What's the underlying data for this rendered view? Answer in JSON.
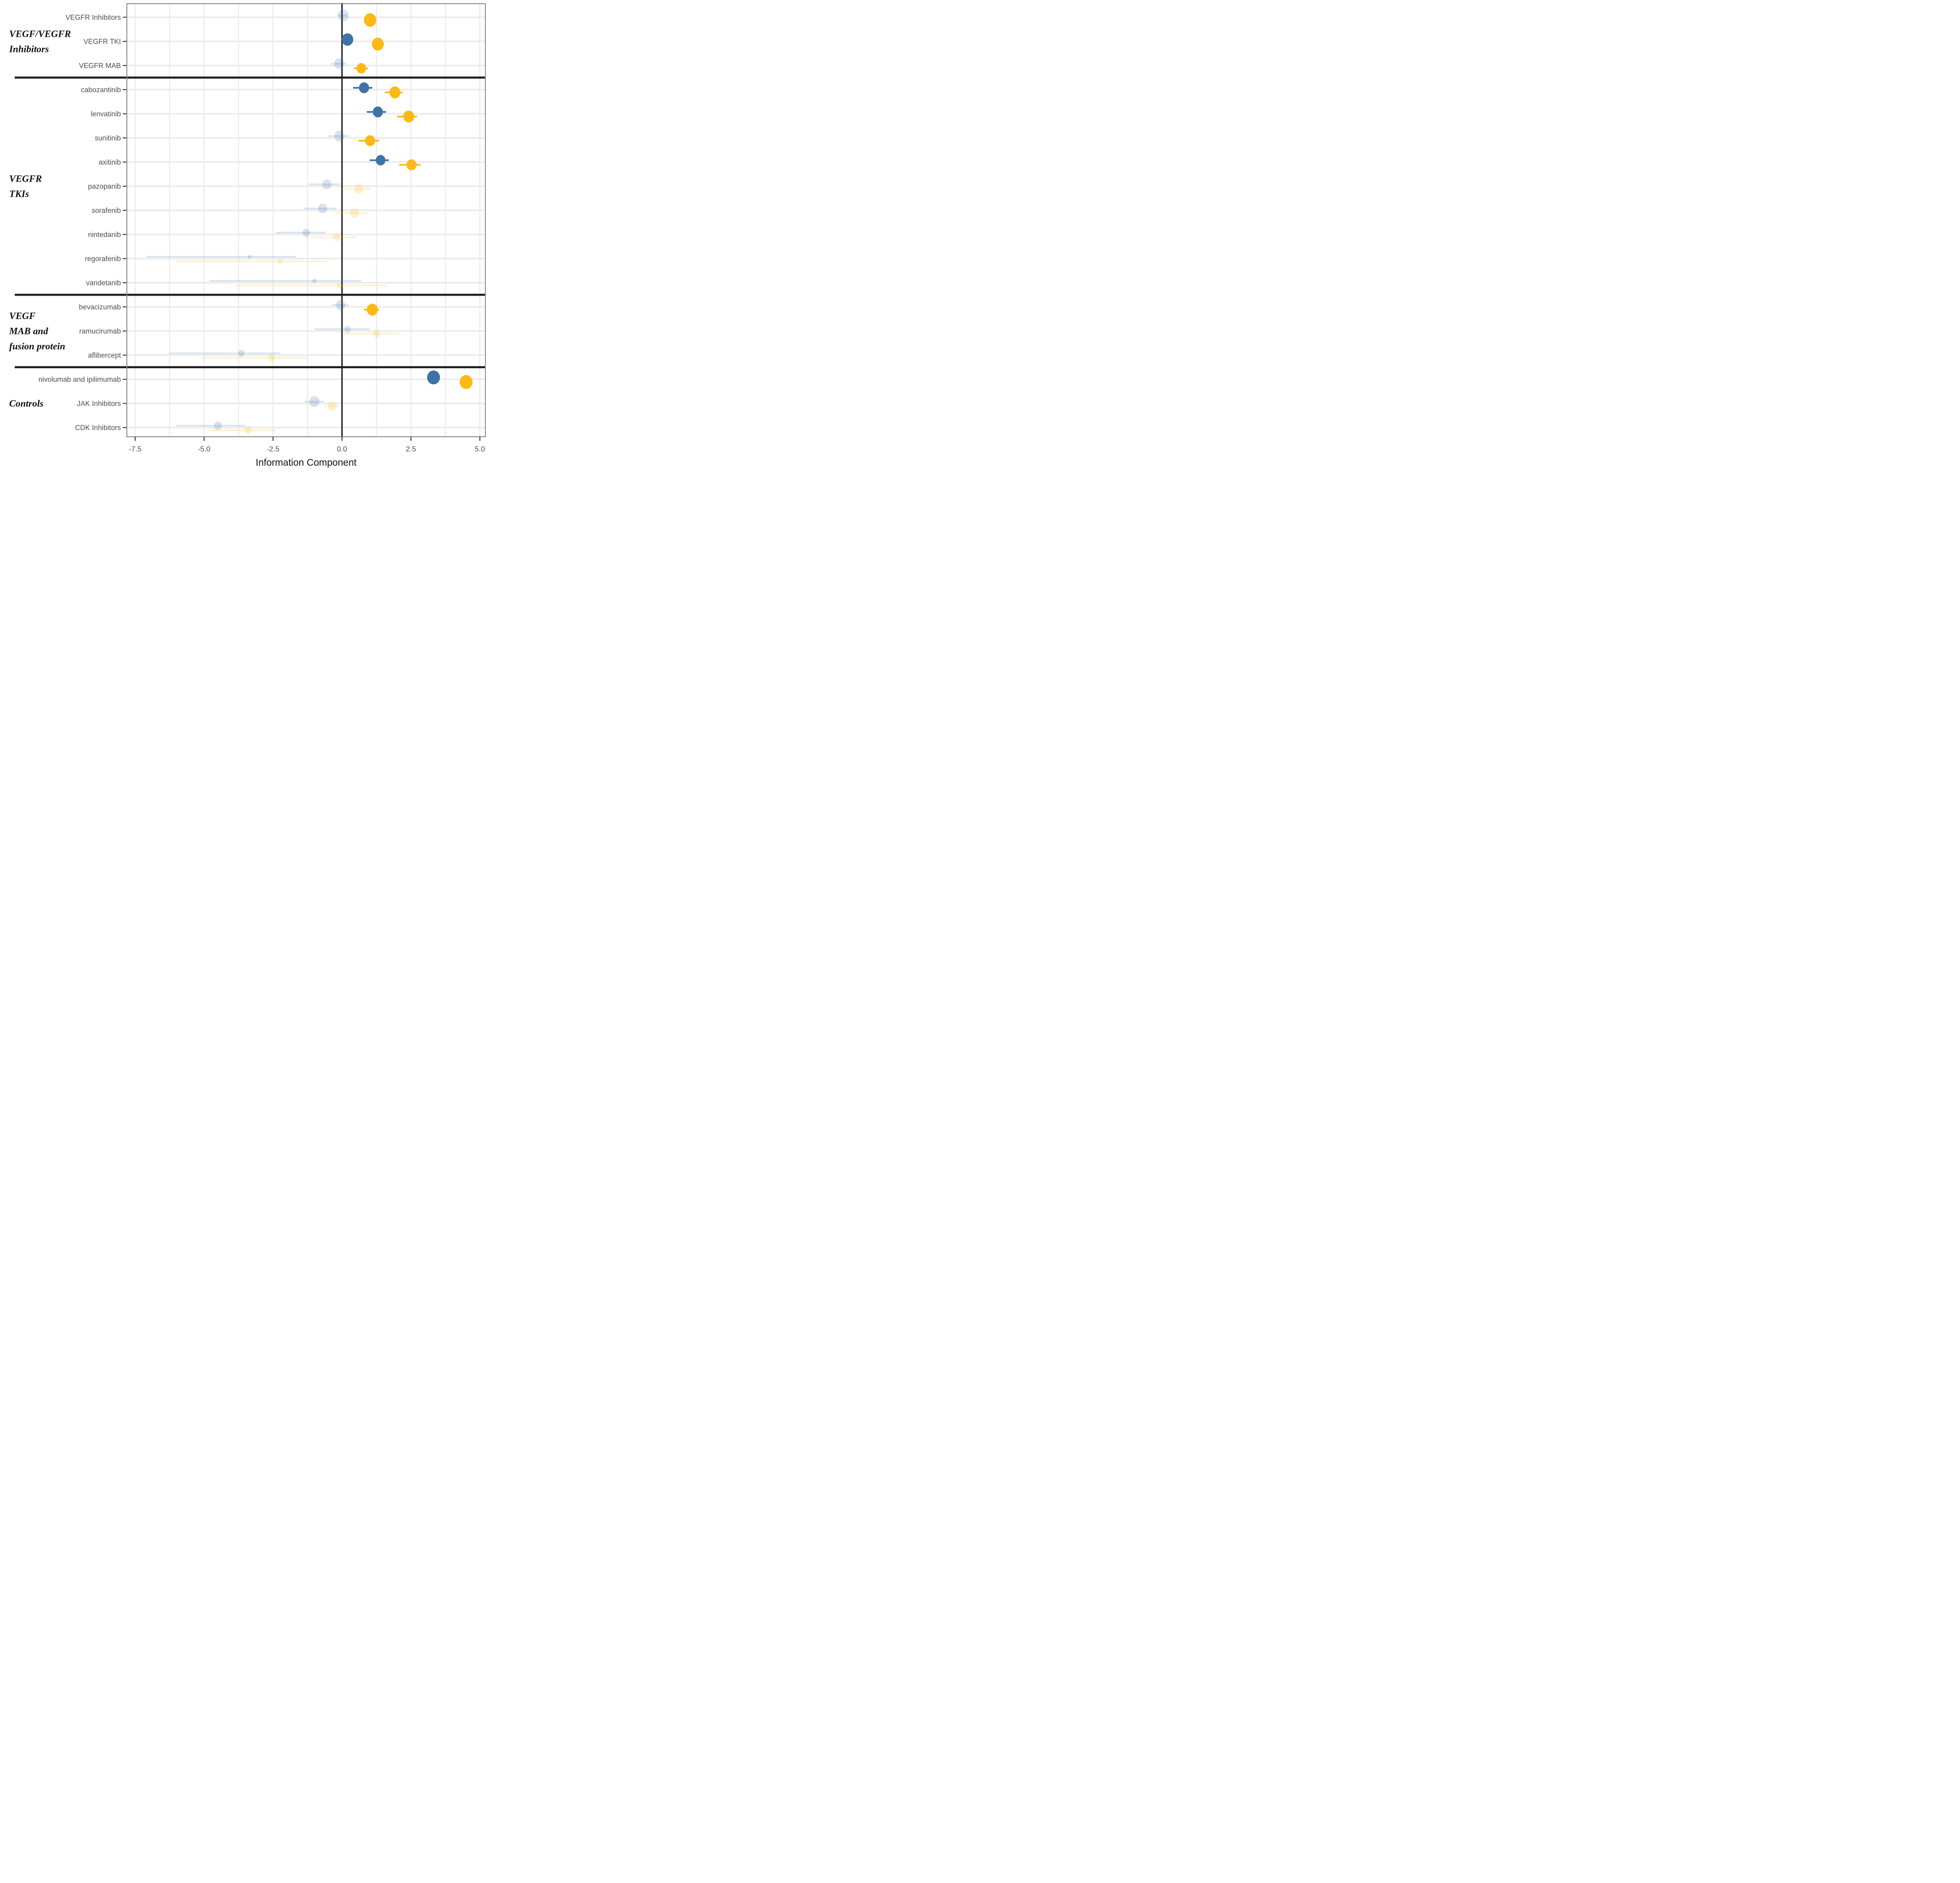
{
  "chart_data": {
    "type": "scatter",
    "variant": "forest-dot-ci-plot",
    "title": "",
    "xlabel": "Information Component",
    "xlim": [
      -7.8,
      5.2
    ],
    "grid_step": 1.25,
    "x_ticks": [
      {
        "value": -7.5,
        "label": "-7.5"
      },
      {
        "value": -5.0,
        "label": "-5.0"
      },
      {
        "value": -2.5,
        "label": "-2.5"
      },
      {
        "value": 0.0,
        "label": "0.0"
      },
      {
        "value": 2.5,
        "label": "2.5"
      },
      {
        "value": 5.0,
        "label": "5.0"
      }
    ],
    "reference_line_x": 0,
    "legend_position": "none",
    "grid": true,
    "series": [
      {
        "id": "blue",
        "color": "#3E72A8"
      },
      {
        "id": "yellow",
        "color": "#FCB816"
      }
    ],
    "style": {
      "faded_opacity": 0.2,
      "gridline_color": "#EBEBEB",
      "panel_border_color": "#8C8C8C",
      "zero_line_color": "#1a1a1a",
      "separator_color": "#1f1f1f",
      "tick_color": "#333333",
      "label_color": "#4d4d4d"
    },
    "groups": [
      {
        "label": "VEGF/VEGFR Inhibitors",
        "label_lines": [
          "VEGF/VEGFR",
          "Inhibitors"
        ],
        "rows": [
          {
            "label": "VEGFR Inhibitors",
            "blue": {
              "ic": 0.05,
              "ci": [
                -0.15,
                0.2
              ],
              "solid": false,
              "r": 12
            },
            "yellow": {
              "ic": 1.02,
              "ci": [
                0.85,
                1.2
              ],
              "solid": true,
              "r": 13.5
            }
          },
          {
            "label": "VEGFR TKI",
            "blue": {
              "ic": 0.2,
              "ci": [
                0.05,
                0.35
              ],
              "solid": true,
              "r": 12.5
            },
            "yellow": {
              "ic": 1.3,
              "ci": [
                1.1,
                1.5
              ],
              "solid": true,
              "r": 13
            }
          },
          {
            "label": "VEGFR MAB",
            "blue": {
              "ic": -0.1,
              "ci": [
                -0.4,
                0.15
              ],
              "solid": false,
              "r": 11
            },
            "yellow": {
              "ic": 0.7,
              "ci": [
                0.42,
                0.95
              ],
              "solid": true,
              "r": 10.5
            }
          }
        ]
      },
      {
        "label": "VEGFR TKIs",
        "label_lines": [
          "VEGFR",
          "TKIs"
        ],
        "rows": [
          {
            "label": "cabozantinib",
            "blue": {
              "ic": 0.8,
              "ci": [
                0.4,
                1.1
              ],
              "solid": true,
              "r": 11
            },
            "yellow": {
              "ic": 1.92,
              "ci": [
                1.55,
                2.2
              ],
              "solid": true,
              "r": 12
            }
          },
          {
            "label": "lenvatinib",
            "blue": {
              "ic": 1.3,
              "ci": [
                0.9,
                1.6
              ],
              "solid": true,
              "r": 11
            },
            "yellow": {
              "ic": 2.42,
              "ci": [
                2.0,
                2.72
              ],
              "solid": true,
              "r": 12
            }
          },
          {
            "label": "sunitinib",
            "blue": {
              "ic": -0.1,
              "ci": [
                -0.5,
                0.25
              ],
              "solid": false,
              "r": 11
            },
            "yellow": {
              "ic": 1.02,
              "ci": [
                0.6,
                1.35
              ],
              "solid": true,
              "r": 11
            }
          },
          {
            "label": "axitinib",
            "blue": {
              "ic": 1.4,
              "ci": [
                1.0,
                1.7
              ],
              "solid": true,
              "r": 10.5
            },
            "yellow": {
              "ic": 2.52,
              "ci": [
                2.07,
                2.85
              ],
              "solid": true,
              "r": 11
            }
          },
          {
            "label": "pazopanib",
            "blue": {
              "ic": -0.55,
              "ci": [
                -1.2,
                -0.1
              ],
              "solid": false,
              "r": 10
            },
            "yellow": {
              "ic": 0.6,
              "ci": [
                0.0,
                1.05
              ],
              "solid": false,
              "r": 10
            }
          },
          {
            "label": "sorafenib",
            "blue": {
              "ic": -0.7,
              "ci": [
                -1.4,
                -0.2
              ],
              "solid": false,
              "r": 10
            },
            "yellow": {
              "ic": 0.45,
              "ci": [
                -0.25,
                0.95
              ],
              "solid": false,
              "r": 10
            }
          },
          {
            "label": "nintedanib",
            "blue": {
              "ic": -1.3,
              "ci": [
                -2.4,
                -0.6
              ],
              "solid": false,
              "r": 8
            },
            "yellow": {
              "ic": -0.2,
              "ci": [
                -1.3,
                0.55
              ],
              "solid": false,
              "r": 8
            }
          },
          {
            "label": "regorafenib",
            "blue": {
              "ic": -3.35,
              "ci": [
                -7.1,
                -1.65
              ],
              "solid": false,
              "r": 4
            },
            "yellow": {
              "ic": -2.25,
              "ci": [
                -6.0,
                -0.55
              ],
              "solid": false,
              "r": 5
            }
          },
          {
            "label": "vandetanib",
            "blue": {
              "ic": -1.0,
              "ci": [
                -4.8,
                0.7
              ],
              "solid": false,
              "r": 4.5
            },
            "yellow": {
              "ic": -0.1,
              "ci": [
                -3.9,
                1.6
              ],
              "solid": false,
              "r": 5.5
            }
          }
        ]
      },
      {
        "label": "VEGF MAB and fusion protein",
        "label_lines": [
          "VEGF",
          "MAB and",
          "fusion protein"
        ],
        "rows": [
          {
            "label": "bevacizumab",
            "blue": {
              "ic": -0.05,
              "ci": [
                -0.35,
                0.25
              ],
              "solid": false,
              "r": 10
            },
            "yellow": {
              "ic": 1.1,
              "ci": [
                0.8,
                1.35
              ],
              "solid": true,
              "r": 12
            }
          },
          {
            "label": "ramucirumab",
            "blue": {
              "ic": 0.2,
              "ci": [
                -1.0,
                1.0
              ],
              "solid": false,
              "r": 7
            },
            "yellow": {
              "ic": 1.25,
              "ci": [
                0.05,
                2.05
              ],
              "solid": false,
              "r": 7.5
            }
          },
          {
            "label": "aflibercept",
            "blue": {
              "ic": -3.65,
              "ci": [
                -6.25,
                -2.25
              ],
              "solid": false,
              "r": 7
            },
            "yellow": {
              "ic": -2.55,
              "ci": [
                -5.1,
                -1.25
              ],
              "solid": false,
              "r": 7.5
            }
          }
        ]
      },
      {
        "label": "Controls",
        "label_lines": [
          "Controls"
        ],
        "rows": [
          {
            "label": "nivolumab and ipilimumab",
            "blue": {
              "ic": 3.32,
              "ci": [
                3.15,
                3.5
              ],
              "solid": true,
              "r": 14
            },
            "yellow": {
              "ic": 4.5,
              "ci": [
                4.33,
                4.67
              ],
              "solid": true,
              "r": 14
            }
          },
          {
            "label": "JAK Inhibitors",
            "blue": {
              "ic": -1.0,
              "ci": [
                -1.35,
                -0.65
              ],
              "solid": false,
              "r": 11
            },
            "yellow": {
              "ic": -0.35,
              "ci": [
                -0.62,
                -0.1
              ],
              "solid": false,
              "r": 10
            }
          },
          {
            "label": "CDK Inhibitors",
            "blue": {
              "ic": -4.5,
              "ci": [
                -6.0,
                -3.5
              ],
              "solid": false,
              "r": 8.5
            },
            "yellow": {
              "ic": -3.4,
              "ci": [
                -4.9,
                -2.4
              ],
              "solid": false,
              "r": 8
            }
          }
        ]
      }
    ]
  }
}
